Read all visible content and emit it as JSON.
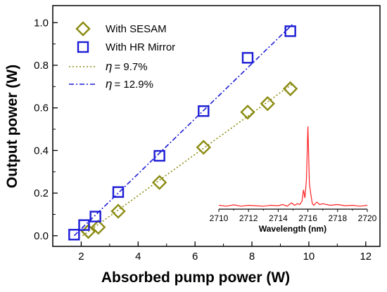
{
  "colors": {
    "sesam": "#8b8b12",
    "hr": "#1c1cd6",
    "spectrum": "#ff2020"
  },
  "chart_data": [
    {
      "type": "scatter",
      "title": "",
      "xlabel": "Absorbed pump power (W)",
      "ylabel": "Output power (W)",
      "xlim": [
        1,
        12.5
      ],
      "ylim": [
        -0.05,
        1.08
      ],
      "x_ticks": [
        2,
        4,
        6,
        8,
        10,
        12
      ],
      "y_ticks": [
        0.0,
        0.2,
        0.4,
        0.6,
        0.8,
        1.0
      ],
      "x_tick_labels": [
        "2",
        "4",
        "6",
        "8",
        "10",
        "12"
      ],
      "y_tick_labels": [
        "0.0",
        "0.2",
        "0.4",
        "0.6",
        "0.8",
        "1.0"
      ],
      "grid": false,
      "legend_position": "top-left",
      "series": [
        {
          "name": "With SESAM",
          "marker": "diamond",
          "color": "#8b8b12",
          "x": [
            2.25,
            2.6,
            3.3,
            4.75,
            6.3,
            7.85,
            8.55,
            9.35
          ],
          "y": [
            0.02,
            0.04,
            0.115,
            0.25,
            0.415,
            0.58,
            0.62,
            0.69
          ]
        },
        {
          "name": "With HR Mirror",
          "marker": "square",
          "color": "#1c1cd6",
          "x": [
            1.75,
            2.1,
            2.5,
            3.3,
            4.75,
            6.3,
            7.85,
            9.35
          ],
          "y": [
            0.005,
            0.05,
            0.09,
            0.205,
            0.375,
            0.585,
            0.835,
            0.96
          ]
        }
      ],
      "fit_lines": [
        {
          "name": "η = 9.7%",
          "eta_symbol": "η",
          "eta_text": "= 9.7%",
          "style": "dotted",
          "color": "#8b8b12",
          "x": [
            2.05,
            9.45
          ],
          "y": [
            0.0,
            0.715
          ]
        },
        {
          "name": "η = 12.9%",
          "eta_symbol": "η",
          "eta_text": "= 12.9%",
          "style": "dash-dot",
          "color": "#1c1cd6",
          "x": [
            1.75,
            9.45
          ],
          "y": [
            0.0,
            0.995
          ]
        }
      ]
    },
    {
      "type": "line",
      "title": "",
      "xlabel": "Wavelength (nm)",
      "ylabel": "",
      "xlim": [
        2710,
        2720
      ],
      "x_ticks": [
        2710,
        2712,
        2714,
        2716,
        2718,
        2720
      ],
      "x_tick_labels": [
        "2710",
        "2712",
        "2714",
        "2716",
        "2718",
        "2720"
      ],
      "ylim": [
        0,
        1
      ],
      "legend_position": "none",
      "series": [
        {
          "name": "",
          "color": "#ff2020",
          "x": [
            2710.0,
            2710.5,
            2711.0,
            2711.5,
            2712.0,
            2712.5,
            2713.0,
            2713.5,
            2714.0,
            2714.3,
            2714.6,
            2714.9,
            2715.1,
            2715.3,
            2715.45,
            2715.6,
            2715.7,
            2715.8,
            2715.9,
            2716.0,
            2716.1,
            2716.2,
            2716.3,
            2716.4,
            2716.6,
            2716.8,
            2717.0,
            2717.5,
            2718.0,
            2718.5,
            2719.0,
            2719.5,
            2720.0
          ],
          "y": [
            0.03,
            0.02,
            0.035,
            0.02,
            0.03,
            0.025,
            0.02,
            0.03,
            0.025,
            0.04,
            0.02,
            0.06,
            0.03,
            0.05,
            0.04,
            0.08,
            0.22,
            0.12,
            0.35,
            1.0,
            0.3,
            0.16,
            0.05,
            0.03,
            0.07,
            0.04,
            0.05,
            0.03,
            0.04,
            0.025,
            0.03,
            0.02,
            0.03
          ]
        }
      ]
    }
  ]
}
